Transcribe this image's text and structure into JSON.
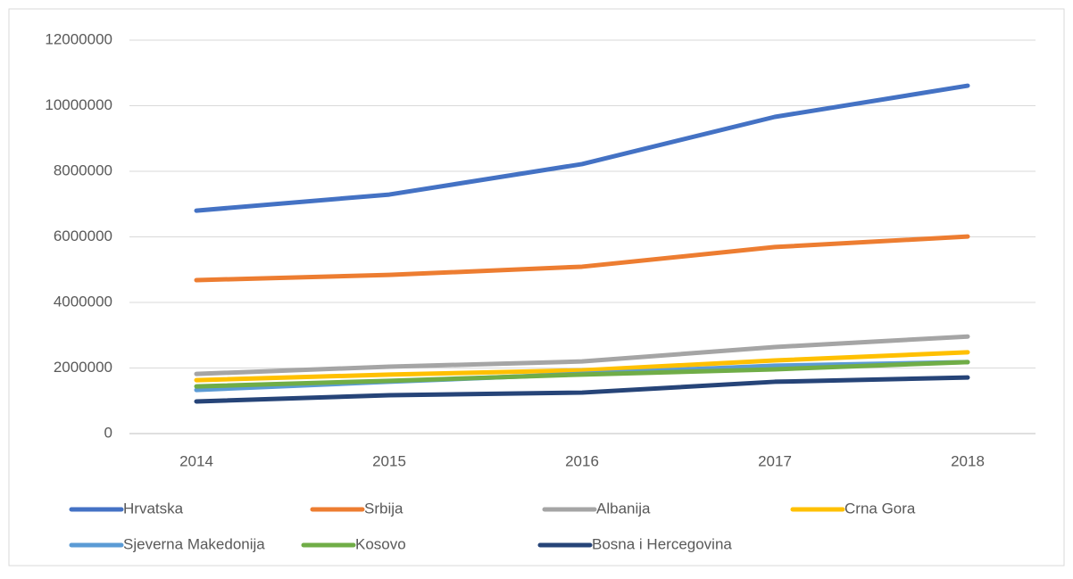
{
  "chart_data": {
    "type": "line",
    "categories": [
      "2014",
      "2015",
      "2016",
      "2017",
      "2018"
    ],
    "series": [
      {
        "name": "Hrvatska",
        "color": "#4472c4",
        "values": [
          6800000,
          7290000,
          8220000,
          9660000,
          10610000
        ]
      },
      {
        "name": "Srbija",
        "color": "#ed7d31",
        "values": [
          4680000,
          4840000,
          5090000,
          5690000,
          6010000
        ]
      },
      {
        "name": "Albanija",
        "color": "#a5a5a5",
        "values": [
          1820000,
          2040000,
          2200000,
          2640000,
          2960000
        ]
      },
      {
        "name": "Crna Gora",
        "color": "#ffc000",
        "values": [
          1630000,
          1800000,
          1930000,
          2230000,
          2480000
        ]
      },
      {
        "name": "Sjeverna Makedonija",
        "color": "#5b9bd5",
        "values": [
          1330000,
          1580000,
          1820000,
          2070000,
          2180000
        ]
      },
      {
        "name": "Kosovo",
        "color": "#70ad47",
        "values": [
          1440000,
          1610000,
          1800000,
          1960000,
          2180000
        ]
      },
      {
        "name": "Bosna i Hercegovina",
        "color": "#264478",
        "values": [
          980000,
          1170000,
          1250000,
          1580000,
          1710000
        ]
      }
    ],
    "ylim": [
      0,
      12000000
    ],
    "yticks": [
      0,
      2000000,
      4000000,
      6000000,
      8000000,
      10000000,
      12000000
    ],
    "grid": true,
    "legend": "bottom"
  }
}
